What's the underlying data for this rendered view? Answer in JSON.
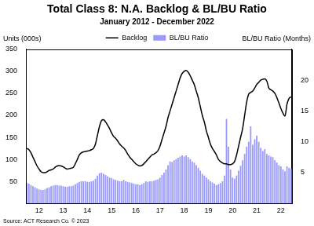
{
  "chart_data": {
    "type": "bar",
    "title": "Total Class 8: N.A. Backlog & BL/BU Ratio",
    "subtitle": "January 2012 - December 2022",
    "ylabel": "Units (000s)",
    "y2label": "BL/BU Ratio (Months)",
    "annotations": [
      "Source: ACT Research Co. © 2023"
    ],
    "legend": "top",
    "grid": false,
    "categories": [
      null,
      null,
      null,
      null,
      null,
      null,
      "12",
      null,
      null,
      null,
      null,
      null,
      null,
      null,
      null,
      null,
      null,
      null,
      "13",
      null,
      null,
      null,
      null,
      null,
      null,
      null,
      null,
      null,
      null,
      null,
      "14",
      null,
      null,
      null,
      null,
      null,
      null,
      null,
      null,
      null,
      null,
      null,
      "15",
      null,
      null,
      null,
      null,
      null,
      null,
      null,
      null,
      null,
      null,
      null,
      "16",
      null,
      null,
      null,
      null,
      null,
      null,
      null,
      null,
      null,
      null,
      null,
      "17",
      null,
      null,
      null,
      null,
      null,
      null,
      null,
      null,
      null,
      null,
      null,
      "18",
      null,
      null,
      null,
      null,
      null,
      null,
      null,
      null,
      null,
      null,
      null,
      "19",
      null,
      null,
      null,
      null,
      null,
      null,
      null,
      null,
      null,
      null,
      null,
      "20",
      null,
      null,
      null,
      null,
      null,
      null,
      null,
      null,
      null,
      null,
      null,
      "21",
      null,
      null,
      null,
      null,
      null,
      null,
      null,
      null,
      null,
      null,
      null,
      "22",
      null,
      null,
      null,
      null,
      null
    ],
    "series": [
      {
        "name": "BL/BU Ratio",
        "type": "bar",
        "color": "#9999ff",
        "axis": "y2",
        "values": [
          3.3,
          3.2,
          3.0,
          2.8,
          2.6,
          2.4,
          2.3,
          2.2,
          2.2,
          2.3,
          2.5,
          2.6,
          2.8,
          2.9,
          3.0,
          3.0,
          2.9,
          2.9,
          2.8,
          2.7,
          2.7,
          2.8,
          2.8,
          2.9,
          3.1,
          3.3,
          3.5,
          3.6,
          3.6,
          3.6,
          3.5,
          3.5,
          3.6,
          3.7,
          4.0,
          4.5,
          4.9,
          5.0,
          4.8,
          4.6,
          4.4,
          4.2,
          4.1,
          3.9,
          3.8,
          3.7,
          3.6,
          3.6,
          3.8,
          3.6,
          3.5,
          3.4,
          3.3,
          3.2,
          3.1,
          3.1,
          3.0,
          3.1,
          3.3,
          3.6,
          3.5,
          3.6,
          3.6,
          3.7,
          3.8,
          3.9,
          4.2,
          4.6,
          5.0,
          5.5,
          6.2,
          6.8,
          6.7,
          7.0,
          7.2,
          7.4,
          7.6,
          7.8,
          7.6,
          7.8,
          7.5,
          7.2,
          6.8,
          6.6,
          6.2,
          5.8,
          5.3,
          4.8,
          4.5,
          4.2,
          3.9,
          3.6,
          3.4,
          3.2,
          3.0,
          3.1,
          3.3,
          3.6,
          4.5,
          13.7,
          9.2,
          5.5,
          4.2,
          4.0,
          4.5,
          5.3,
          6.1,
          7.0,
          8.0,
          9.2,
          10.0,
          12.5,
          9.5,
          10.4,
          11.0,
          10.0,
          9.0,
          8.5,
          8.8,
          8.0,
          7.8,
          7.6,
          7.5,
          7.0,
          6.6,
          6.2,
          6.0,
          5.5,
          5.2,
          6.0,
          5.8,
          5.6
        ]
      },
      {
        "name": "Backlog",
        "type": "line",
        "color": "#000000",
        "values": [
          125,
          122,
          115,
          105,
          95,
          85,
          78,
          72,
          70,
          70,
          72,
          75,
          76,
          78,
          82,
          85,
          86,
          85,
          83,
          80,
          78,
          79,
          80,
          82,
          90,
          100,
          110,
          115,
          117,
          118,
          119,
          120,
          122,
          125,
          135,
          155,
          175,
          188,
          190,
          185,
          178,
          170,
          160,
          152,
          148,
          142,
          135,
          130,
          126,
          120,
          112,
          105,
          100,
          95,
          90,
          87,
          85,
          86,
          90,
          95,
          100,
          105,
          110,
          112,
          115,
          120,
          130,
          145,
          160,
          175,
          195,
          210,
          225,
          240,
          255,
          270,
          285,
          295,
          300,
          302,
          298,
          290,
          280,
          270,
          255,
          240,
          220,
          200,
          185,
          165,
          150,
          135,
          125,
          118,
          110,
          100,
          95,
          92,
          90,
          90,
          88,
          88,
          90,
          95,
          110,
          130,
          150,
          170,
          200,
          230,
          248,
          252,
          255,
          262,
          270,
          275,
          280,
          282,
          283,
          278,
          262,
          258,
          255,
          250,
          240,
          228,
          215,
          205,
          198,
          225,
          238,
          242
        ]
      }
    ],
    "ylim": [
      0,
      350
    ],
    "yticks": [
      50,
      100,
      150,
      200,
      250,
      300,
      350
    ],
    "y2lim": [
      0,
      25
    ],
    "y2ticks": [
      5,
      10,
      15,
      20
    ]
  }
}
